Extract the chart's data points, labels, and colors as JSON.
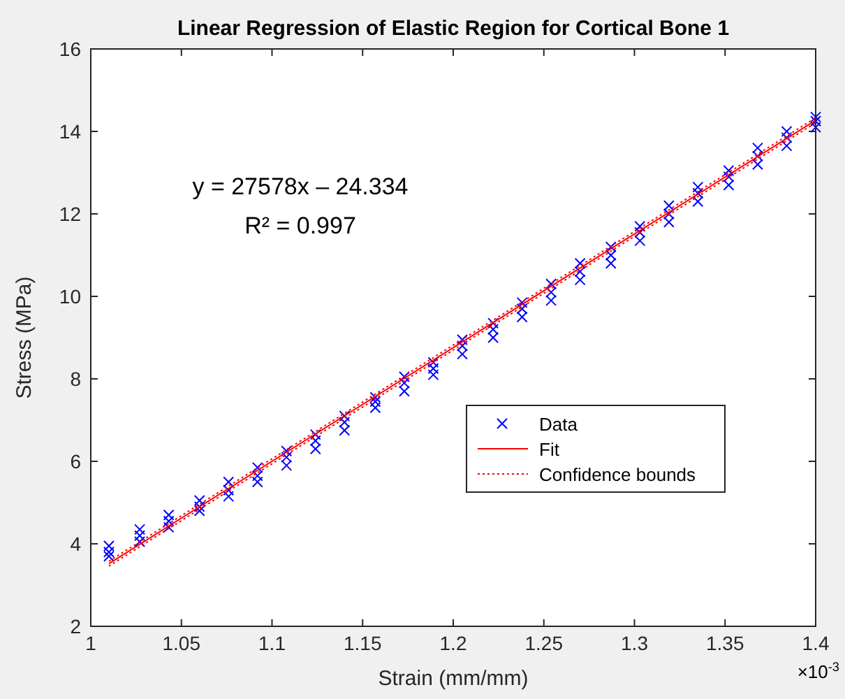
{
  "chart_data": {
    "type": "scatter",
    "title": "Linear Regression of Elastic Region for Cortical Bone 1",
    "xlabel": "Strain (mm/mm)",
    "ylabel": "Stress (MPa)",
    "annotations": [
      "y = 27578x – 24.334",
      "R² = 0.997",
      "×10$^{-3}$"
    ],
    "xlim": [
      1,
      1.4
    ],
    "xticks": [
      1,
      1.05,
      1.1,
      1.15,
      1.2,
      1.25,
      1.3,
      1.35,
      1.4
    ],
    "ylim": [
      2,
      16
    ],
    "yticks": [
      2,
      4,
      6,
      8,
      10,
      12,
      14,
      16
    ],
    "grid": false,
    "legend": "right",
    "series": [
      {
        "name": "Data",
        "color": "#0000ff",
        "marker": "cross",
        "x": [
          1.01,
          1.01,
          1.01,
          1.027,
          1.027,
          1.027,
          1.043,
          1.043,
          1.043,
          1.06,
          1.06,
          1.06,
          1.076,
          1.076,
          1.076,
          1.092,
          1.092,
          1.092,
          1.108,
          1.108,
          1.108,
          1.124,
          1.124,
          1.124,
          1.14,
          1.14,
          1.14,
          1.157,
          1.157,
          1.157,
          1.173,
          1.173,
          1.173,
          1.189,
          1.189,
          1.189,
          1.205,
          1.205,
          1.205,
          1.222,
          1.222,
          1.222,
          1.238,
          1.238,
          1.238,
          1.254,
          1.254,
          1.254,
          1.27,
          1.27,
          1.27,
          1.287,
          1.287,
          1.287,
          1.303,
          1.303,
          1.303,
          1.319,
          1.319,
          1.319,
          1.335,
          1.335,
          1.335,
          1.352,
          1.352,
          1.352,
          1.368,
          1.368,
          1.368,
          1.384,
          1.384,
          1.384,
          1.4,
          1.4,
          1.4
        ],
        "values": [
          3.7,
          3.8,
          3.95,
          4.05,
          4.2,
          4.35,
          4.4,
          4.55,
          4.7,
          4.8,
          4.9,
          5.05,
          5.15,
          5.3,
          5.5,
          5.5,
          5.65,
          5.85,
          5.9,
          6.1,
          6.25,
          6.3,
          6.5,
          6.65,
          6.75,
          6.95,
          7.1,
          7.3,
          7.45,
          7.55,
          7.7,
          7.9,
          8.05,
          8.1,
          8.25,
          8.4,
          8.6,
          8.8,
          8.95,
          9.0,
          9.2,
          9.35,
          9.5,
          9.7,
          9.85,
          9.9,
          10.1,
          10.3,
          10.4,
          10.6,
          10.8,
          10.8,
          11.0,
          11.2,
          11.35,
          11.55,
          11.7,
          11.8,
          12.0,
          12.2,
          12.3,
          12.5,
          12.65,
          12.7,
          12.9,
          13.05,
          13.2,
          13.4,
          13.6,
          13.65,
          13.85,
          14.0,
          14.1,
          14.25,
          14.35
        ]
      },
      {
        "name": "Fit",
        "type": "line",
        "color": "#ff0000",
        "line_style": "solid",
        "x": [
          1.01,
          1.4
        ],
        "values": [
          3.52,
          14.27
        ]
      },
      {
        "name": "Confidence bounds",
        "type": "line",
        "color": "#ff0000",
        "line_style": "dotted",
        "x": [
          1.01,
          1.4
        ],
        "values": [
          3.58,
          14.33
        ]
      },
      {
        "type": "line",
        "color": "#ff0000",
        "line_style": "dotted",
        "x": [
          1.01,
          1.4
        ],
        "values": [
          3.46,
          14.21
        ]
      }
    ]
  }
}
